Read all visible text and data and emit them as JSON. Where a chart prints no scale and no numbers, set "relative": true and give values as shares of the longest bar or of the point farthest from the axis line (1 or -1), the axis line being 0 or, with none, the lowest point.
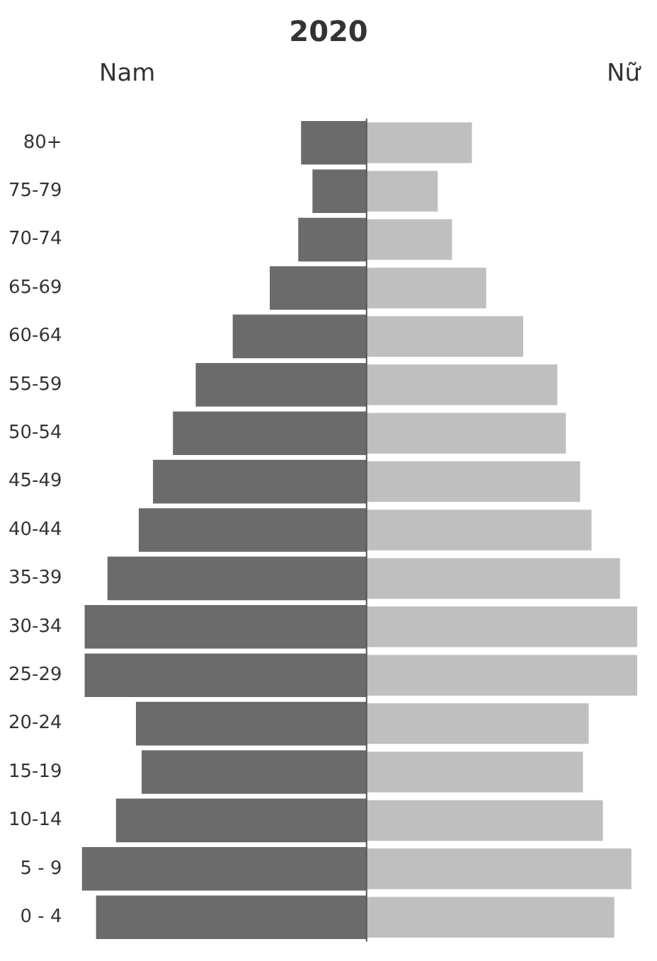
{
  "chart_data": {
    "type": "bar",
    "title": "2020",
    "orientation": "horizontal",
    "relative": true,
    "categories": [
      "80+",
      "75-79",
      "70-74",
      "65-69",
      "60-64",
      "55-59",
      "50-54",
      "45-49",
      "40-44",
      "35-39",
      "30-34",
      "25-29",
      "20-24",
      "15-19",
      "10-14",
      "5 - 9",
      "0 - 4"
    ],
    "series": [
      {
        "name": "Nam",
        "color": "#6b6b6b",
        "values": [
          -0.23,
          -0.19,
          -0.24,
          -0.34,
          -0.47,
          -0.6,
          -0.68,
          -0.75,
          -0.8,
          -0.91,
          -0.99,
          -0.99,
          -0.81,
          -0.79,
          -0.88,
          -1,
          -0.95
        ]
      },
      {
        "name": "Nữ",
        "color": "#bfbfbf",
        "values": [
          0.37,
          0.25,
          0.3,
          0.42,
          0.55,
          0.67,
          0.7,
          0.75,
          0.79,
          0.89,
          0.95,
          0.95,
          0.78,
          0.76,
          0.83,
          0.93,
          0.87
        ]
      }
    ]
  }
}
